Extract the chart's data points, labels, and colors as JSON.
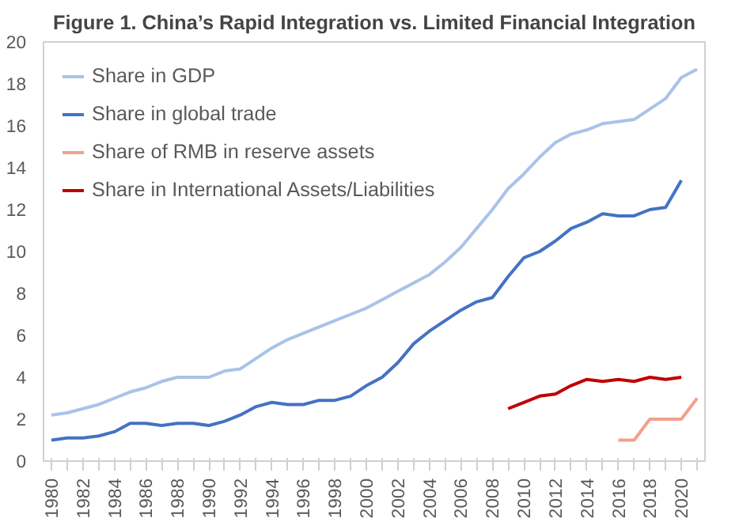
{
  "chart_data": {
    "type": "line",
    "title": "Figure 1. China’s Rapid Integration vs. Limited Financial Integration",
    "x": [
      1980,
      1981,
      1982,
      1983,
      1984,
      1985,
      1986,
      1987,
      1988,
      1989,
      1990,
      1991,
      1992,
      1993,
      1994,
      1995,
      1996,
      1997,
      1998,
      1999,
      2000,
      2001,
      2002,
      2003,
      2004,
      2005,
      2006,
      2007,
      2008,
      2009,
      2010,
      2011,
      2012,
      2013,
      2014,
      2015,
      2016,
      2017,
      2018,
      2019,
      2020,
      2021
    ],
    "series": [
      {
        "name": "Share in GDP",
        "color": "#a9c3e8",
        "values": [
          2.2,
          2.3,
          2.5,
          2.7,
          3.0,
          3.3,
          3.5,
          3.8,
          4.0,
          4.0,
          4.0,
          4.3,
          4.4,
          4.9,
          5.4,
          5.8,
          6.1,
          6.4,
          6.7,
          7.0,
          7.3,
          7.7,
          8.1,
          8.5,
          8.9,
          9.5,
          10.2,
          11.1,
          12.0,
          13.0,
          13.7,
          14.5,
          15.2,
          15.6,
          15.8,
          16.1,
          16.2,
          16.3,
          16.8,
          17.3,
          18.3,
          18.7
        ]
      },
      {
        "name": "Share in global trade",
        "color": "#4472c4",
        "values": [
          1.0,
          1.1,
          1.1,
          1.2,
          1.4,
          1.8,
          1.8,
          1.7,
          1.8,
          1.8,
          1.7,
          1.9,
          2.2,
          2.6,
          2.8,
          2.7,
          2.7,
          2.9,
          2.9,
          3.1,
          3.6,
          4.0,
          4.7,
          5.6,
          6.2,
          6.7,
          7.2,
          7.6,
          7.8,
          8.8,
          9.7,
          10.0,
          10.5,
          11.1,
          11.4,
          11.8,
          11.7,
          11.7,
          12.0,
          12.1,
          13.4,
          null
        ]
      },
      {
        "name": "Share of RMB in reserve assets",
        "color": "#f4a08c",
        "values": [
          null,
          null,
          null,
          null,
          null,
          null,
          null,
          null,
          null,
          null,
          null,
          null,
          null,
          null,
          null,
          null,
          null,
          null,
          null,
          null,
          null,
          null,
          null,
          null,
          null,
          null,
          null,
          null,
          null,
          null,
          null,
          null,
          null,
          null,
          null,
          null,
          1,
          1,
          2,
          2,
          2,
          3
        ]
      },
      {
        "name": "Share in International Assets/Liabilities",
        "color": "#c00000",
        "values": [
          null,
          null,
          null,
          null,
          null,
          null,
          null,
          null,
          null,
          null,
          null,
          null,
          null,
          null,
          null,
          null,
          null,
          null,
          null,
          null,
          null,
          null,
          null,
          null,
          null,
          null,
          null,
          null,
          null,
          2.5,
          2.8,
          3.1,
          3.2,
          3.6,
          3.9,
          3.8,
          3.9,
          3.8,
          4.0,
          3.9,
          4.0,
          null
        ]
      }
    ],
    "xlim": [
      1979.5,
      2021.5
    ],
    "xticks": [
      1980,
      {
        "value": 1981,
        "label": null
      },
      1982,
      {
        "value": 1983,
        "label": null
      },
      1984,
      {
        "value": 1985,
        "label": null
      },
      1986,
      {
        "value": 1987,
        "label": null
      },
      1988,
      {
        "value": 1989,
        "label": null
      },
      1990,
      {
        "value": 1991,
        "label": null
      },
      1992,
      {
        "value": 1993,
        "label": null
      },
      1994,
      {
        "value": 1995,
        "label": null
      },
      1996,
      {
        "value": 1997,
        "label": null
      },
      1998,
      {
        "value": 1999,
        "label": null
      },
      2000,
      {
        "value": 2001,
        "label": null
      },
      2002,
      {
        "value": 2003,
        "label": null
      },
      2004,
      {
        "value": 2005,
        "label": null
      },
      2006,
      {
        "value": 2007,
        "label": null
      },
      2008,
      {
        "value": 2009,
        "label": null
      },
      2010,
      {
        "value": 2011,
        "label": null
      },
      2012,
      {
        "value": 2013,
        "label": null
      },
      2014,
      {
        "value": 2015,
        "label": null
      },
      2016,
      {
        "value": 2017,
        "label": null
      },
      2018,
      {
        "value": 2019,
        "label": null
      },
      2020,
      {
        "value": 2021,
        "label": null
      }
    ],
    "ylim": [
      0,
      20
    ],
    "yticks": [
      0,
      2,
      4,
      6,
      8,
      10,
      12,
      14,
      16,
      18,
      20
    ],
    "legend": "top left",
    "grid": false,
    "marker": "none",
    "line_style": "solid"
  }
}
